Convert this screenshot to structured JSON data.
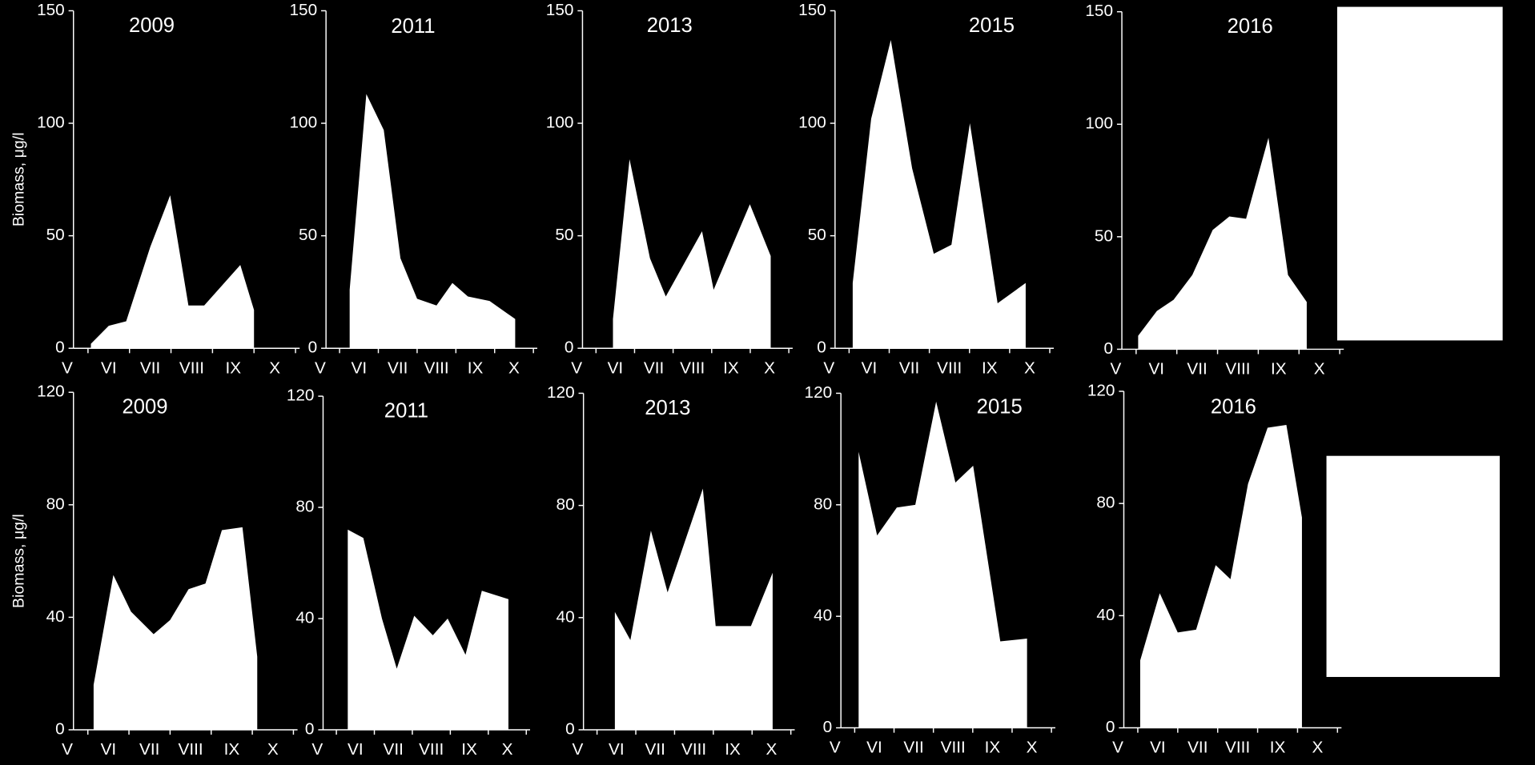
{
  "chart_data": [
    {
      "type": "area",
      "title": "2009",
      "ylabel": "Biomass, μg/l",
      "color": "#ffffff",
      "x": [
        5.57,
        6.0,
        6.42,
        7.0,
        7.48,
        7.92,
        8.3,
        9.17,
        9.5
      ],
      "values": [
        2,
        10,
        12,
        45,
        68,
        19,
        19,
        37,
        17
      ],
      "xlim": [
        5.15,
        10.6
      ],
      "xticks": [
        {
          "value": 5,
          "label": "V"
        },
        {
          "value": 6,
          "label": "VI"
        },
        {
          "value": 7,
          "label": "VII"
        },
        {
          "value": 8,
          "label": "VIII"
        },
        {
          "value": 9,
          "label": "IX"
        },
        {
          "value": 10,
          "label": "X"
        }
      ],
      "ylim": [
        0,
        150
      ],
      "yticks": [
        0,
        50,
        100,
        150
      ]
    },
    {
      "type": "area",
      "title": "2011",
      "color": "#ffffff",
      "x": [
        5.76,
        6.19,
        6.64,
        7.07,
        7.5,
        8.0,
        8.41,
        8.81,
        9.37,
        10.03
      ],
      "values": [
        26,
        113,
        97,
        40,
        22,
        19,
        29,
        23,
        21,
        13
      ],
      "xlim": [
        5.15,
        10.6
      ],
      "xticks": [
        {
          "value": 5,
          "label": "V"
        },
        {
          "value": 6,
          "label": "VI"
        },
        {
          "value": 7,
          "label": "VII"
        },
        {
          "value": 8,
          "label": "VIII"
        },
        {
          "value": 9,
          "label": "IX"
        },
        {
          "value": 10,
          "label": "X"
        }
      ],
      "ylim": [
        0,
        150
      ],
      "yticks": [
        0,
        50,
        100,
        150
      ]
    },
    {
      "type": "area",
      "title": "2013",
      "color": "#ffffff",
      "x": [
        5.94,
        6.37,
        6.9,
        7.31,
        8.25,
        8.55,
        9.49,
        10.03
      ],
      "values": [
        13,
        84,
        40,
        23,
        52,
        26,
        64,
        41
      ],
      "xlim": [
        5.15,
        10.6
      ],
      "xticks": [
        {
          "value": 5,
          "label": "V"
        },
        {
          "value": 6,
          "label": "VI"
        },
        {
          "value": 7,
          "label": "VII"
        },
        {
          "value": 8,
          "label": "VIII"
        },
        {
          "value": 9,
          "label": "IX"
        },
        {
          "value": 10,
          "label": "X"
        }
      ],
      "ylim": [
        0,
        150
      ],
      "yticks": [
        0,
        50,
        100,
        150
      ]
    },
    {
      "type": "area",
      "title": "2015",
      "color": "#ffffff",
      "x": [
        5.59,
        6.05,
        6.54,
        7.07,
        7.61,
        8.05,
        8.51,
        9.2,
        9.9
      ],
      "values": [
        29,
        102,
        137,
        80,
        42,
        46,
        100,
        20,
        29
      ],
      "xlim": [
        5.15,
        10.6
      ],
      "xticks": [
        {
          "value": 5,
          "label": "V"
        },
        {
          "value": 6,
          "label": "VI"
        },
        {
          "value": 7,
          "label": "VII"
        },
        {
          "value": 8,
          "label": "VIII"
        },
        {
          "value": 9,
          "label": "IX"
        },
        {
          "value": 10,
          "label": "X"
        }
      ],
      "ylim": [
        0,
        150
      ],
      "yticks": [
        0,
        50,
        100,
        150
      ]
    },
    {
      "type": "area",
      "title": "2016",
      "color": "#ffffff",
      "x": [
        5.55,
        6.01,
        6.42,
        6.88,
        7.38,
        7.79,
        8.2,
        8.75,
        9.23,
        9.69
      ],
      "values": [
        6,
        17,
        22,
        33,
        53,
        59,
        58,
        94,
        33,
        21
      ],
      "xlim": [
        5.15,
        10.6
      ],
      "xticks": [
        {
          "value": 5,
          "label": "V"
        },
        {
          "value": 6,
          "label": "VI"
        },
        {
          "value": 7,
          "label": "VII"
        },
        {
          "value": 8,
          "label": "VIII"
        },
        {
          "value": 9,
          "label": "IX"
        },
        {
          "value": 10,
          "label": "X"
        }
      ],
      "ylim": [
        0,
        150
      ],
      "yticks": [
        0,
        50,
        100,
        150
      ]
    },
    {
      "type": "area",
      "title": "2009",
      "ylabel": "Biomass, μg/l",
      "color": "#ffffff",
      "x": [
        5.64,
        6.12,
        6.55,
        7.1,
        7.5,
        7.95,
        8.36,
        8.76,
        9.26,
        9.62
      ],
      "values": [
        16,
        55,
        42,
        34,
        39,
        50,
        52,
        71,
        72,
        26
      ],
      "xlim": [
        5.15,
        10.6
      ],
      "xticks": [
        {
          "value": 5,
          "label": "V"
        },
        {
          "value": 6,
          "label": "VI"
        },
        {
          "value": 7,
          "label": "VII"
        },
        {
          "value": 8,
          "label": "VIII"
        },
        {
          "value": 9,
          "label": "IX"
        },
        {
          "value": 10,
          "label": "X"
        }
      ],
      "ylim": [
        0,
        120
      ],
      "yticks": [
        0,
        40,
        80,
        120
      ]
    },
    {
      "type": "area",
      "title": "2011",
      "color": "#ffffff",
      "x": [
        5.8,
        6.21,
        6.7,
        7.09,
        7.55,
        8.04,
        8.43,
        8.9,
        9.33,
        10.03
      ],
      "values": [
        72,
        69,
        40,
        22,
        41,
        34,
        40,
        27,
        50,
        47
      ],
      "xlim": [
        5.15,
        10.6
      ],
      "xticks": [
        {
          "value": 5,
          "label": "V"
        },
        {
          "value": 6,
          "label": "VI"
        },
        {
          "value": 7,
          "label": "VII"
        },
        {
          "value": 8,
          "label": "VIII"
        },
        {
          "value": 9,
          "label": "IX"
        },
        {
          "value": 10,
          "label": "X"
        }
      ],
      "ylim": [
        0,
        120
      ],
      "yticks": [
        0,
        40,
        80,
        120
      ]
    },
    {
      "type": "area",
      "title": "2013",
      "color": "#ffffff",
      "x": [
        5.96,
        6.36,
        6.89,
        7.32,
        8.23,
        8.56,
        9.47,
        10.03
      ],
      "values": [
        42,
        32,
        71,
        49,
        86,
        37,
        37,
        56
      ],
      "xlim": [
        5.15,
        10.6
      ],
      "xticks": [
        {
          "value": 5,
          "label": "V"
        },
        {
          "value": 6,
          "label": "VI"
        },
        {
          "value": 7,
          "label": "VII"
        },
        {
          "value": 8,
          "label": "VIII"
        },
        {
          "value": 9,
          "label": "IX"
        },
        {
          "value": 10,
          "label": "X"
        }
      ],
      "ylim": [
        0,
        120
      ],
      "yticks": [
        0,
        40,
        80,
        120
      ]
    },
    {
      "type": "area",
      "title": "2015",
      "color": "#ffffff",
      "x": [
        5.6,
        6.07,
        6.57,
        7.04,
        7.57,
        8.06,
        8.51,
        9.2,
        9.88
      ],
      "values": [
        99,
        69,
        79,
        80,
        117,
        88,
        94,
        31,
        32
      ],
      "xlim": [
        5.15,
        10.6
      ],
      "xticks": [
        {
          "value": 5,
          "label": "V"
        },
        {
          "value": 6,
          "label": "VI"
        },
        {
          "value": 7,
          "label": "VII"
        },
        {
          "value": 8,
          "label": "VIII"
        },
        {
          "value": 9,
          "label": "IX"
        },
        {
          "value": 10,
          "label": "X"
        }
      ],
      "ylim": [
        0,
        120
      ],
      "yticks": [
        0,
        40,
        80,
        120
      ]
    },
    {
      "type": "area",
      "title": "2016",
      "color": "#ffffff",
      "x": [
        5.56,
        6.05,
        6.5,
        6.96,
        7.45,
        7.82,
        8.26,
        8.75,
        9.22,
        9.61
      ],
      "values": [
        24,
        48,
        34,
        35,
        58,
        53,
        87,
        107,
        108,
        75
      ],
      "xlim": [
        5.15,
        10.6
      ],
      "xticks": [
        {
          "value": 5,
          "label": "V"
        },
        {
          "value": 6,
          "label": "VI"
        },
        {
          "value": 7,
          "label": "VII"
        },
        {
          "value": 8,
          "label": "VIII"
        },
        {
          "value": 9,
          "label": "IX"
        },
        {
          "value": 10,
          "label": "X"
        }
      ],
      "ylim": [
        0,
        120
      ],
      "yticks": [
        0,
        40,
        80,
        120
      ]
    }
  ]
}
